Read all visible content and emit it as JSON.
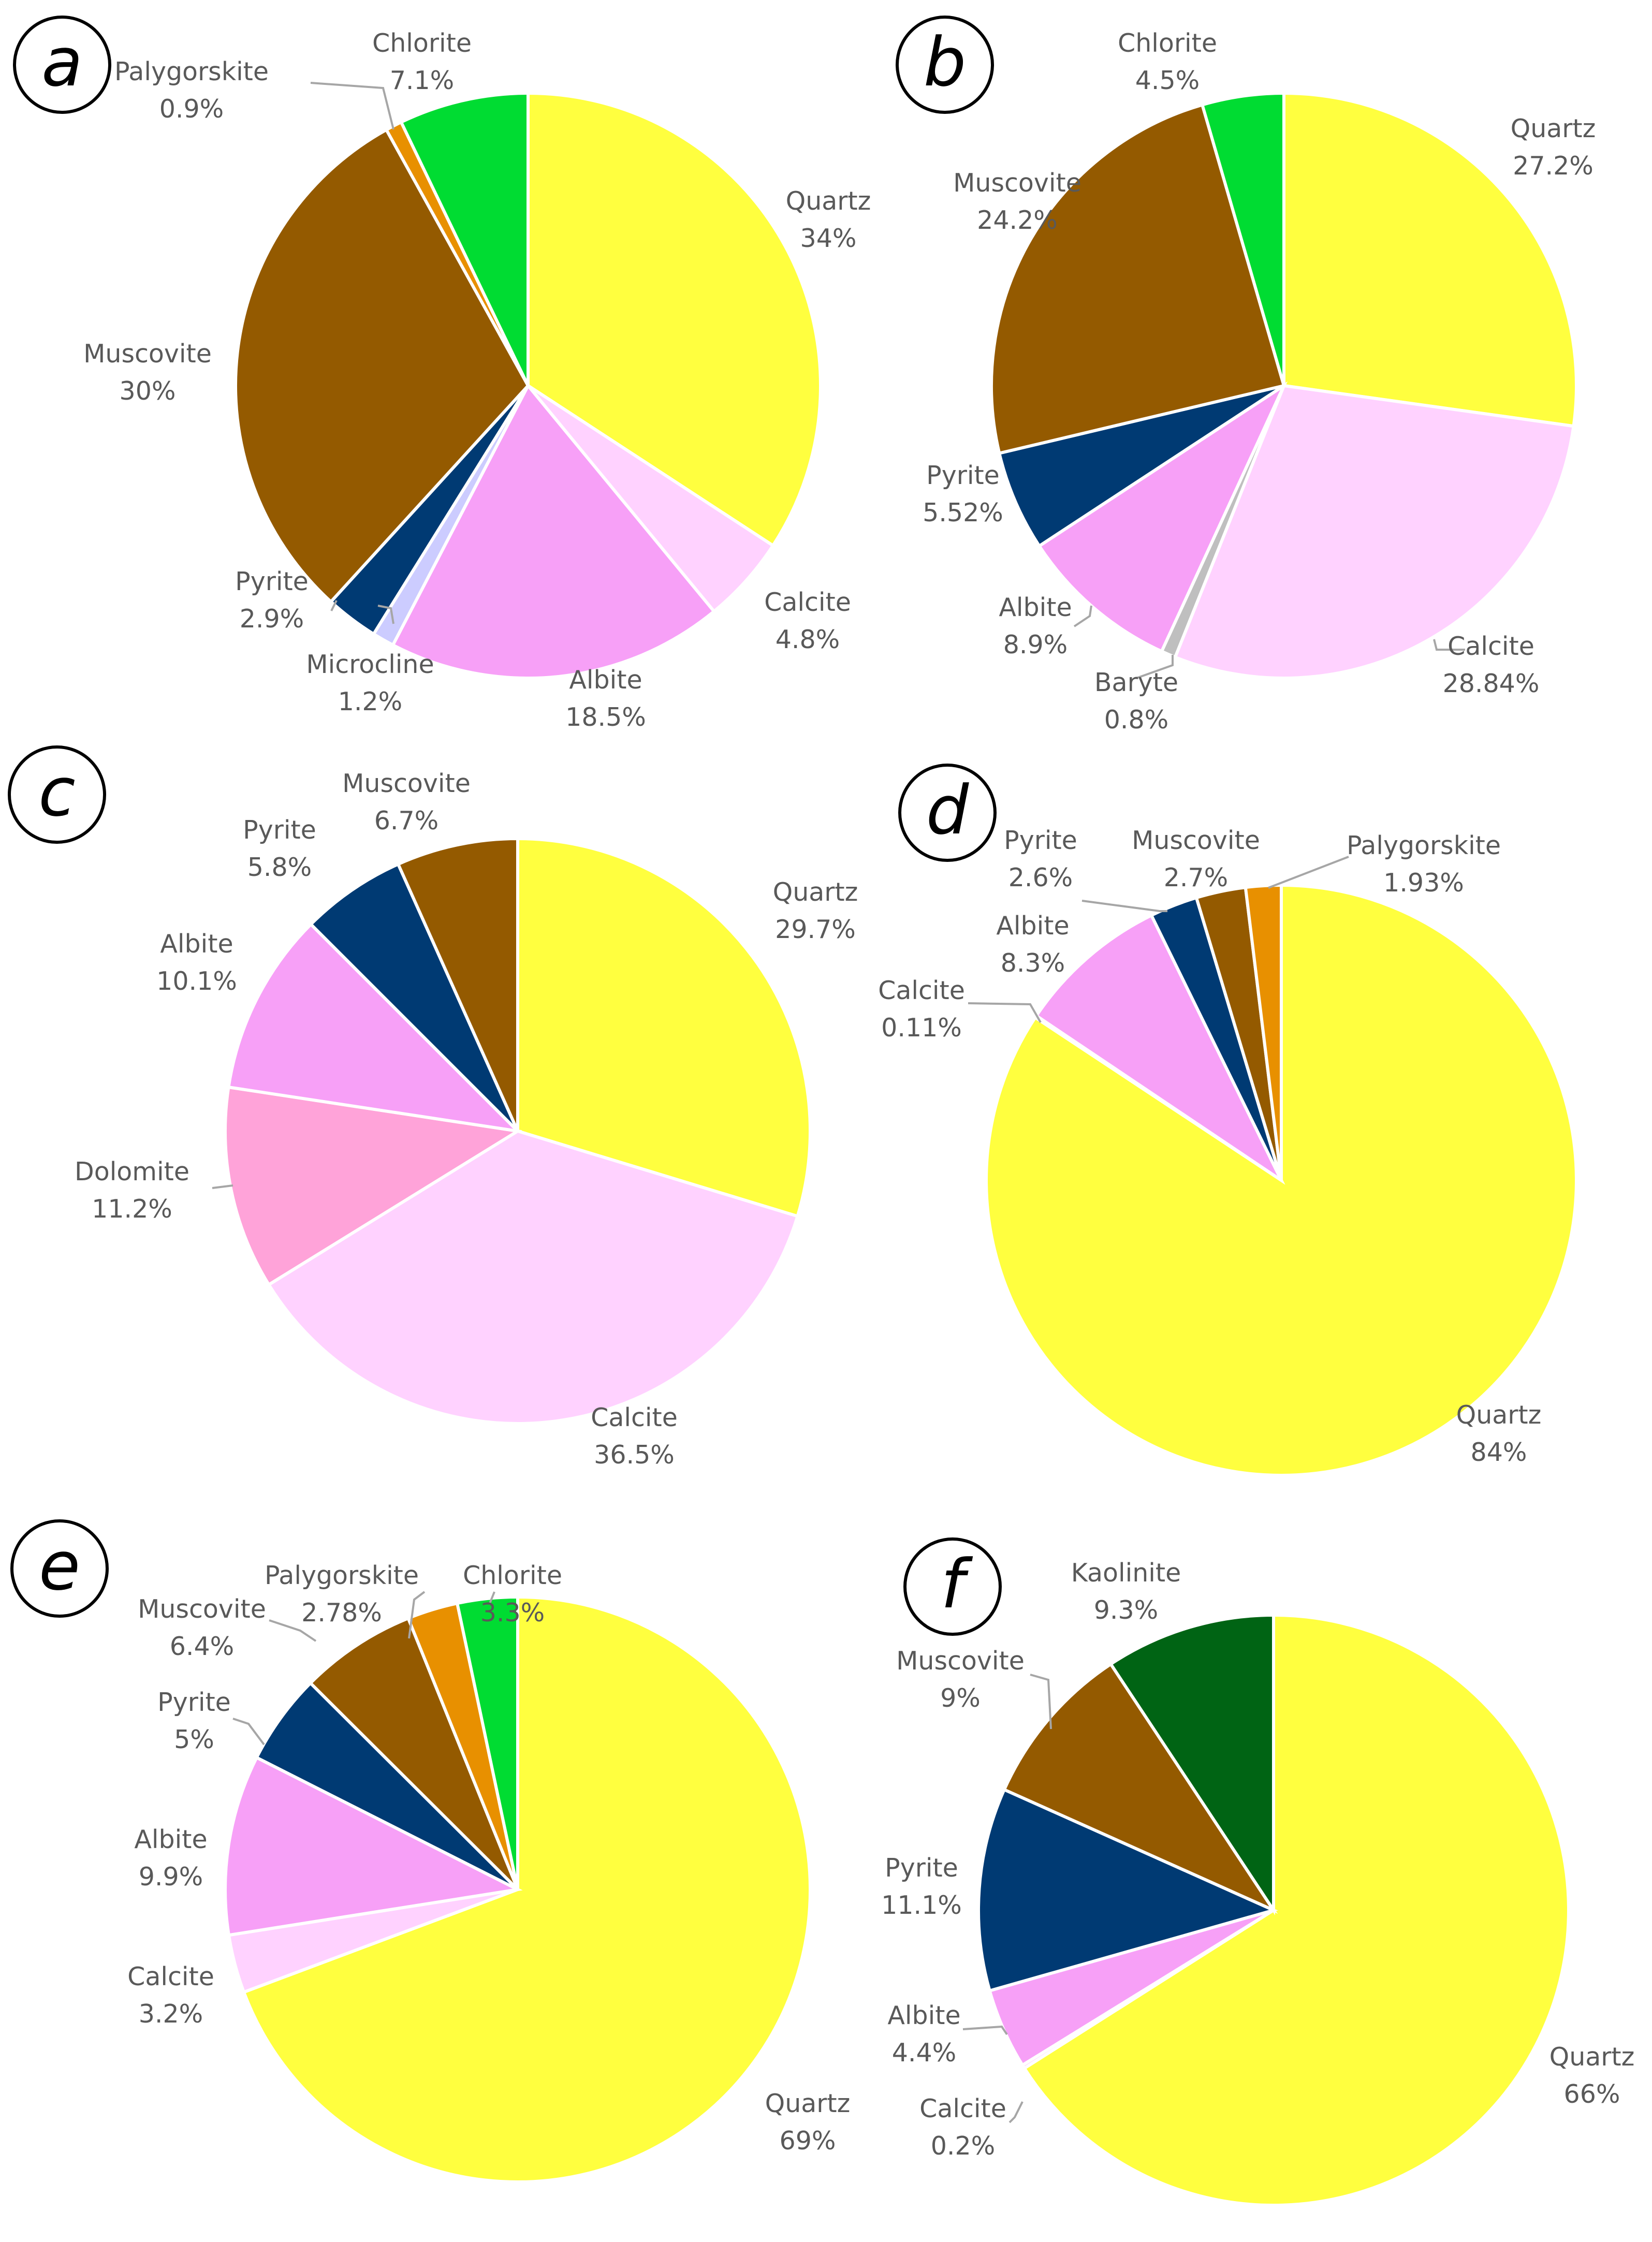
{
  "chart_data": [
    {
      "type": "pie",
      "panel": "a",
      "slices": [
        {
          "name": "Quartz",
          "value": 34,
          "label": "34%",
          "color": "#FFFF3F"
        },
        {
          "name": "Calcite",
          "value": 4.8,
          "label": "4.8%",
          "color": "#FFD2FF"
        },
        {
          "name": "Albite",
          "value": 18.5,
          "label": "18.5%",
          "color": "#F7A0F7"
        },
        {
          "name": "Microcline",
          "value": 1.2,
          "label": "1.2%",
          "color": "#CCCCFF"
        },
        {
          "name": "Pyrite",
          "value": 2.9,
          "label": "2.9%",
          "color": "#003A73"
        },
        {
          "name": "Muscovite",
          "value": 30,
          "label": "30%",
          "color": "#945A00"
        },
        {
          "name": "Palygorskite",
          "value": 0.9,
          "label": "0.9%",
          "color": "#E89000"
        },
        {
          "name": "Chlorite",
          "value": 7.1,
          "label": "7.1%",
          "color": "#00DC32"
        }
      ]
    },
    {
      "type": "pie",
      "panel": "b",
      "slices": [
        {
          "name": "Quartz",
          "value": 27.2,
          "label": "27.2%",
          "color": "#FFFF3F"
        },
        {
          "name": "Calcite",
          "value": 28.84,
          "label": "28.84%",
          "color": "#FFD2FF"
        },
        {
          "name": "Baryte",
          "value": 0.8,
          "label": "0.8%",
          "color": "#BFBFBF"
        },
        {
          "name": "Albite",
          "value": 8.9,
          "label": "8.9%",
          "color": "#F7A0F7"
        },
        {
          "name": "Pyrite",
          "value": 5.52,
          "label": "5.52%",
          "color": "#003A73"
        },
        {
          "name": "Muscovite",
          "value": 24.2,
          "label": "24.2%",
          "color": "#945A00"
        },
        {
          "name": "Chlorite",
          "value": 4.5,
          "label": "4.5%",
          "color": "#00DC32"
        }
      ]
    },
    {
      "type": "pie",
      "panel": "c",
      "slices": [
        {
          "name": "Quartz",
          "value": 29.7,
          "label": "29.7%",
          "color": "#FFFF3F"
        },
        {
          "name": "Calcite",
          "value": 36.5,
          "label": "36.5%",
          "color": "#FFD2FF"
        },
        {
          "name": "Dolomite",
          "value": 11.2,
          "label": "11.2%",
          "color": "#FFA3D9"
        },
        {
          "name": "Albite",
          "value": 10.1,
          "label": "10.1%",
          "color": "#F7A0F7"
        },
        {
          "name": "Pyrite",
          "value": 5.8,
          "label": "5.8%",
          "color": "#003A73"
        },
        {
          "name": "Muscovite",
          "value": 6.7,
          "label": "6.7%",
          "color": "#945A00"
        }
      ]
    },
    {
      "type": "pie",
      "panel": "d",
      "slices": [
        {
          "name": "Quartz",
          "value": 84,
          "label": "84%",
          "color": "#FFFF3F"
        },
        {
          "name": "Calcite",
          "value": 0.11,
          "label": "0.11%",
          "color": "#FFD2FF"
        },
        {
          "name": "Albite",
          "value": 8.3,
          "label": "8.3%",
          "color": "#F7A0F7"
        },
        {
          "name": "Pyrite",
          "value": 2.6,
          "label": "2.6%",
          "color": "#003A73"
        },
        {
          "name": "Muscovite",
          "value": 2.7,
          "label": "2.7%",
          "color": "#945A00"
        },
        {
          "name": "Palygorskite",
          "value": 1.93,
          "label": "1.93%",
          "color": "#E89000"
        }
      ]
    },
    {
      "type": "pie",
      "panel": "e",
      "slices": [
        {
          "name": "Quartz",
          "value": 69,
          "label": "69%",
          "color": "#FFFF3F"
        },
        {
          "name": "Calcite",
          "value": 3.2,
          "label": "3.2%",
          "color": "#FFD2FF"
        },
        {
          "name": "Albite",
          "value": 9.9,
          "label": "9.9%",
          "color": "#F7A0F7"
        },
        {
          "name": "Pyrite",
          "value": 5,
          "label": "5%",
          "color": "#003A73"
        },
        {
          "name": "Muscovite",
          "value": 6.4,
          "label": "6.4%",
          "color": "#945A00"
        },
        {
          "name": "Palygorskite",
          "value": 2.78,
          "label": "2.78%",
          "color": "#E89000"
        },
        {
          "name": "Chlorite",
          "value": 3.3,
          "label": "3.3%",
          "color": "#00DC32"
        }
      ]
    },
    {
      "type": "pie",
      "panel": "f",
      "slices": [
        {
          "name": "Quartz",
          "value": 66,
          "label": "66%",
          "color": "#FFFF3F"
        },
        {
          "name": "Calcite",
          "value": 0.2,
          "label": "0.2%",
          "color": "#FFD2FF"
        },
        {
          "name": "Albite",
          "value": 4.4,
          "label": "4.4%",
          "color": "#F7A0F7"
        },
        {
          "name": "Pyrite",
          "value": 11.1,
          "label": "11.1%",
          "color": "#003A73"
        },
        {
          "name": "Muscovite",
          "value": 9,
          "label": "9%",
          "color": "#945A00"
        },
        {
          "name": "Kaolinite",
          "value": 9.3,
          "label": "9.3%",
          "color": "#006414"
        }
      ]
    }
  ]
}
